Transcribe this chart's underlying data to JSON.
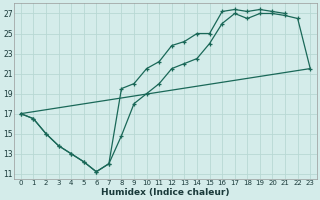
{
  "xlabel": "Humidex (Indice chaleur)",
  "bg_color": "#d4ecea",
  "grid_color": "#b8d8d4",
  "line_color": "#1a6858",
  "xmin": -0.5,
  "xmax": 23.5,
  "ymin": 10.5,
  "ymax": 28.0,
  "yticks": [
    11,
    13,
    15,
    17,
    19,
    21,
    23,
    25,
    27
  ],
  "xticks": [
    0,
    1,
    2,
    3,
    4,
    5,
    6,
    7,
    8,
    9,
    10,
    11,
    12,
    13,
    14,
    15,
    16,
    17,
    18,
    19,
    20,
    21,
    22,
    23
  ],
  "curve1_x": [
    0,
    1,
    2,
    3,
    4,
    5,
    6,
    7,
    8,
    9,
    10,
    11,
    12,
    13,
    14,
    15,
    16,
    17,
    18,
    19,
    20,
    21
  ],
  "curve1_y": [
    17.0,
    16.5,
    15.0,
    13.8,
    13.0,
    12.2,
    11.2,
    12.0,
    19.5,
    20.0,
    21.5,
    22.2,
    23.8,
    24.2,
    25.0,
    25.0,
    27.2,
    27.4,
    27.2,
    27.4,
    27.2,
    27.0
  ],
  "curve2_x": [
    0,
    1,
    2,
    3,
    4,
    5,
    6,
    7,
    8,
    9,
    10,
    11,
    12,
    13,
    14,
    15,
    16,
    17,
    18,
    19,
    20,
    21,
    22,
    23
  ],
  "curve2_y": [
    17.0,
    16.5,
    15.0,
    13.8,
    13.0,
    12.2,
    11.2,
    12.0,
    14.8,
    18.0,
    19.0,
    20.0,
    21.5,
    22.0,
    22.5,
    24.0,
    26.0,
    27.0,
    26.5,
    27.0,
    27.0,
    26.8,
    26.5,
    21.5
  ],
  "curve3_x": [
    0,
    23
  ],
  "curve3_y": [
    17.0,
    21.5
  ]
}
